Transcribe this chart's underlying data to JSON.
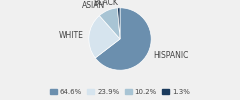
{
  "labels": [
    "HISPANIC",
    "WHITE",
    "ASIAN",
    "BLACK"
  ],
  "values": [
    64.6,
    23.9,
    10.2,
    1.3
  ],
  "colors": [
    "#6b8fae",
    "#d6e4ee",
    "#a8c4d4",
    "#1a3a5c"
  ],
  "legend_labels": [
    "64.6%",
    "23.9%",
    "10.2%",
    "1.3%"
  ],
  "startangle": 90,
  "font_size": 5.5,
  "label_font_color": "#444444"
}
